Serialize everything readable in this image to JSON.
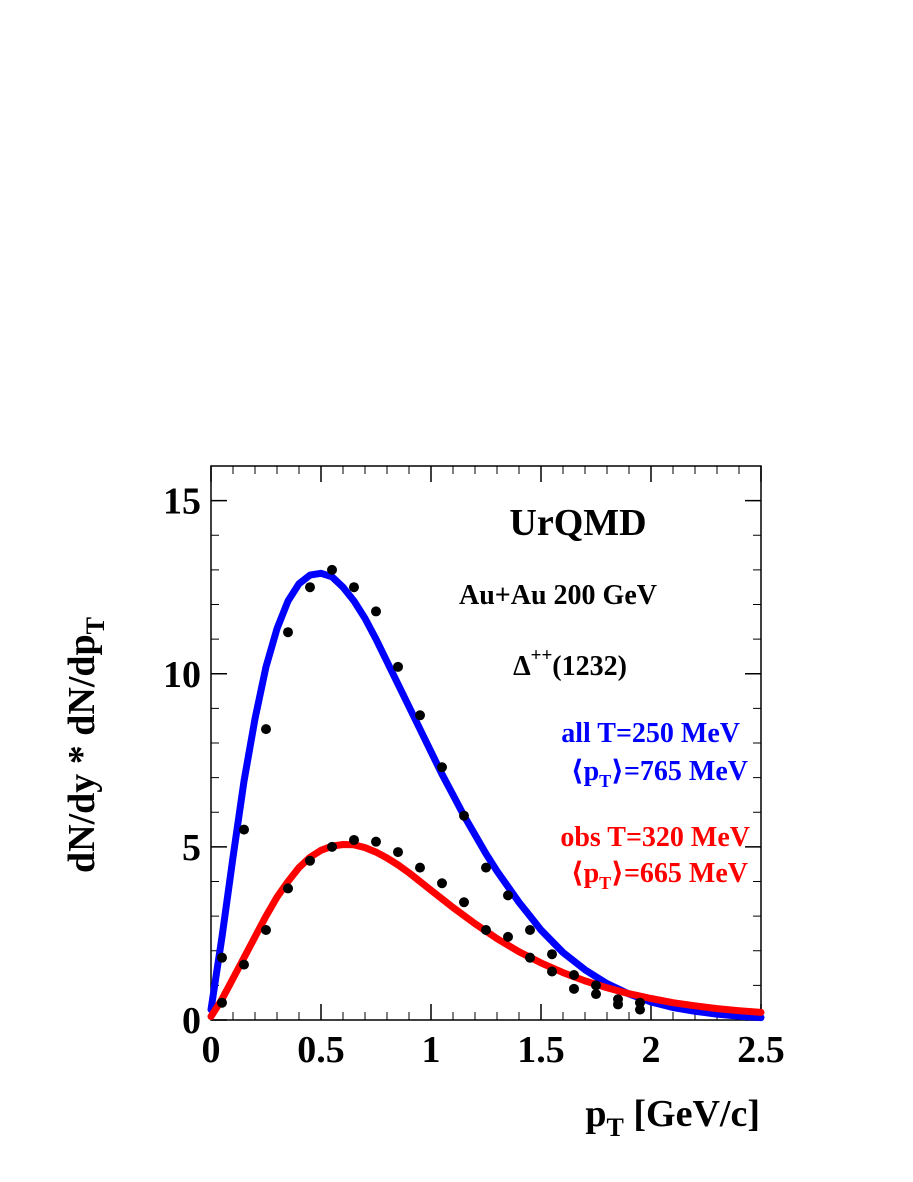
{
  "chart_data": {
    "type": "line",
    "title": "UrQMD",
    "subtitle": "Au+Au 200 GeV",
    "particle_base": "Δ",
    "particle_sup": "++",
    "particle_rest": "(1232)",
    "ylabel": "dN/dy * dN/dp",
    "ylabel_sub": "T",
    "xlabel_main": "p",
    "xlabel_sub": "T",
    "xlabel_rest": "[GeV/c]",
    "xlim": [
      0,
      2.5
    ],
    "ylim": [
      0,
      16
    ],
    "x_ticks": [
      {
        "v": 0,
        "label": "0"
      },
      {
        "v": 0.5,
        "label": "0.5"
      },
      {
        "v": 1,
        "label": "1"
      },
      {
        "v": 1.5,
        "label": "1.5"
      },
      {
        "v": 2,
        "label": "2"
      },
      {
        "v": 2.5,
        "label": "2.5"
      }
    ],
    "y_ticks": [
      {
        "v": 0,
        "label": "0"
      },
      {
        "v": 5,
        "label": "5"
      },
      {
        "v": 10,
        "label": "10"
      },
      {
        "v": 15,
        "label": "15"
      }
    ],
    "colors": {
      "all": "#0000ff",
      "obs": "#ff0000",
      "points": "#000000"
    },
    "series": [
      {
        "name": "all",
        "legend": "all T=250 MeV",
        "legend2_pre": "⟨p",
        "legend2_sub": "T",
        "legend2_post": "⟩=765 MeV",
        "x": [
          0.0,
          0.05,
          0.1,
          0.15,
          0.2,
          0.25,
          0.3,
          0.35,
          0.4,
          0.45,
          0.5,
          0.55,
          0.6,
          0.65,
          0.7,
          0.75,
          0.8,
          0.85,
          0.9,
          0.95,
          1.0,
          1.05,
          1.1,
          1.15,
          1.2,
          1.25,
          1.3,
          1.35,
          1.4,
          1.45,
          1.5,
          1.6,
          1.7,
          1.8,
          1.9,
          2.0,
          2.1,
          2.2,
          2.3,
          2.4,
          2.5
        ],
        "y": [
          0.3,
          2.4,
          4.7,
          6.9,
          8.7,
          10.2,
          11.3,
          12.1,
          12.6,
          12.85,
          12.9,
          12.8,
          12.5,
          12.1,
          11.6,
          11.0,
          10.35,
          9.7,
          9.05,
          8.4,
          7.75,
          7.1,
          6.5,
          5.9,
          5.35,
          4.8,
          4.3,
          3.85,
          3.4,
          3.0,
          2.6,
          1.95,
          1.45,
          1.05,
          0.75,
          0.52,
          0.36,
          0.25,
          0.17,
          0.11,
          0.07
        ]
      },
      {
        "name": "obs",
        "legend": "obs T=320 MeV",
        "legend2_pre": "⟨p",
        "legend2_sub": "T",
        "legend2_post": "⟩=665 MeV",
        "x": [
          0.0,
          0.05,
          0.1,
          0.15,
          0.2,
          0.25,
          0.3,
          0.35,
          0.4,
          0.45,
          0.5,
          0.55,
          0.6,
          0.65,
          0.7,
          0.75,
          0.8,
          0.85,
          0.9,
          0.95,
          1.0,
          1.1,
          1.2,
          1.3,
          1.4,
          1.5,
          1.6,
          1.7,
          1.8,
          1.9,
          2.0,
          2.1,
          2.2,
          2.3,
          2.4,
          2.5
        ],
        "y": [
          0.1,
          0.6,
          1.2,
          1.8,
          2.4,
          3.0,
          3.55,
          4.0,
          4.4,
          4.7,
          4.9,
          5.02,
          5.07,
          5.06,
          4.98,
          4.85,
          4.68,
          4.48,
          4.25,
          4.0,
          3.75,
          3.25,
          2.78,
          2.35,
          1.97,
          1.65,
          1.37,
          1.13,
          0.93,
          0.76,
          0.62,
          0.5,
          0.41,
          0.33,
          0.27,
          0.22
        ]
      },
      {
        "name": "points_all",
        "x": [
          0.05,
          0.15,
          0.25,
          0.35,
          0.45,
          0.55,
          0.65,
          0.75,
          0.85,
          0.95,
          1.05,
          1.15,
          1.25,
          1.35,
          1.45,
          1.55,
          1.65,
          1.75,
          1.85,
          1.95
        ],
        "y": [
          1.8,
          5.5,
          8.4,
          11.2,
          12.5,
          13.0,
          12.5,
          11.8,
          10.2,
          8.8,
          7.3,
          5.9,
          4.4,
          3.6,
          2.6,
          1.9,
          1.3,
          1.0,
          0.6,
          0.5
        ]
      },
      {
        "name": "points_obs",
        "x": [
          0.05,
          0.15,
          0.25,
          0.35,
          0.45,
          0.55,
          0.65,
          0.75,
          0.85,
          0.95,
          1.05,
          1.15,
          1.25,
          1.35,
          1.45,
          1.55,
          1.65,
          1.75,
          1.85,
          1.95
        ],
        "y": [
          0.5,
          1.6,
          2.6,
          3.8,
          4.6,
          5.0,
          5.2,
          5.15,
          4.85,
          4.4,
          3.95,
          3.4,
          2.6,
          2.4,
          1.8,
          1.4,
          0.9,
          0.75,
          0.45,
          0.3
        ]
      }
    ]
  }
}
